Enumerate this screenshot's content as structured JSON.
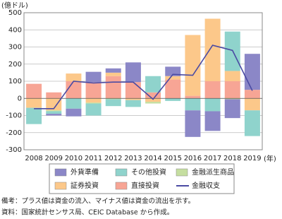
{
  "chart_data": {
    "type": "bar",
    "stacked": true,
    "y_label": "(億ドル)",
    "x_label": "(年)",
    "categories": [
      "2008",
      "2009",
      "2010",
      "2011",
      "2012",
      "2013",
      "2014",
      "2015",
      "2016",
      "2017",
      "2018",
      "2019"
    ],
    "series": [
      {
        "name": "直接投資",
        "color": "#f7a595",
        "values": [
          85,
          35,
          100,
          95,
          130,
          95,
          35,
          110,
          15,
          100,
          100,
          50
        ]
      },
      {
        "name": "証券投資",
        "color": "#fcc88a",
        "values": [
          -55,
          -70,
          45,
          -25,
          20,
          -10,
          -20,
          20,
          355,
          365,
          60,
          -70
        ]
      },
      {
        "name": "金融派生商品",
        "color": "#c5dea0",
        "values": [
          0,
          -5,
          0,
          -5,
          -5,
          0,
          -10,
          0,
          0,
          0,
          -5,
          0
        ]
      },
      {
        "name": "その他投資",
        "color": "#8fd3cc",
        "values": [
          -95,
          -15,
          -60,
          -70,
          -40,
          -40,
          95,
          -15,
          -70,
          -75,
          230,
          -150
        ]
      },
      {
        "name": "外貨準備",
        "color": "#8b87c7",
        "values": [
          0,
          -10,
          -45,
          60,
          25,
          115,
          0,
          55,
          -155,
          -115,
          -110,
          210
        ]
      },
      {
        "name": "金融収支",
        "type": "line",
        "color": "#4b4ba3",
        "values": [
          -60,
          -60,
          100,
          90,
          95,
          95,
          -5,
          140,
          135,
          310,
          280,
          45
        ]
      }
    ],
    "legend_order": [
      4,
      3,
      2,
      1,
      0,
      5
    ],
    "ylim": [
      -300,
      500
    ],
    "yticks": [
      -300,
      -200,
      -100,
      0,
      100,
      200,
      300,
      400,
      500
    ],
    "grid": true,
    "notes": [
      "備考：プラス値は資金の流入、マイナス値は資金の流出を示す。",
      "資料：国家統計センサス局、CEIC Database から作成。"
    ]
  }
}
